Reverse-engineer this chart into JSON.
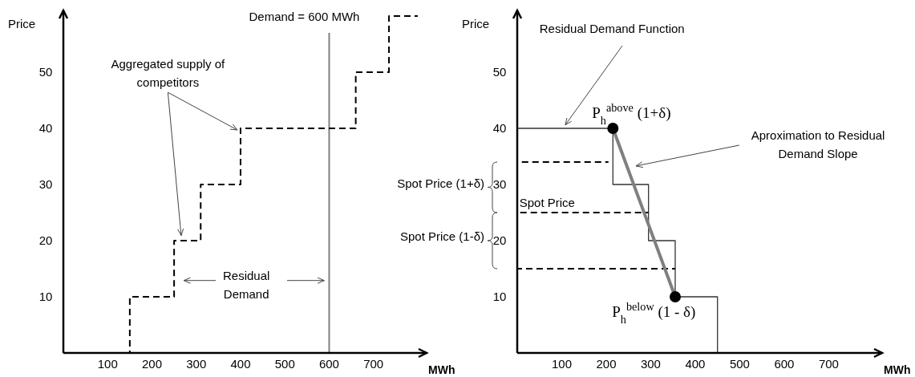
{
  "chart_data": [
    {
      "type": "line",
      "xlabel": "MWh",
      "ylabel": "Price",
      "xlim": [
        0,
        820
      ],
      "ylim": [
        0,
        61
      ],
      "xticks": [
        100,
        200,
        300,
        400,
        500,
        600,
        700
      ],
      "yticks": [
        10,
        20,
        30,
        40,
        50
      ],
      "series": [
        {
          "line_style": "dashed",
          "color": "#000000",
          "x": [
            150,
            150,
            250,
            250,
            310,
            310,
            400,
            400,
            660,
            660,
            735,
            735,
            800
          ],
          "values": [
            0,
            10,
            10,
            20,
            20,
            30,
            30,
            40,
            40,
            50,
            50,
            60,
            60
          ]
        }
      ],
      "ref_lines": [
        {
          "axis": "x",
          "value": 600,
          "label": "Demand = 600 MWh",
          "color": "#808080"
        }
      ],
      "annotations": [
        {
          "text": "Aggregated supply of competitors",
          "x": 400,
          "y": 40
        },
        "Residual Demand"
      ]
    },
    {
      "type": "line",
      "xlabel": "MWh",
      "ylabel": "Price",
      "xlim": [
        0,
        820
      ],
      "ylim": [
        0,
        61
      ],
      "xticks": [
        100,
        200,
        300,
        400,
        500,
        600,
        700
      ],
      "yticks": [
        10,
        20,
        30,
        40,
        50
      ],
      "series": [
        {
          "line_style": "solid",
          "color": "#333333",
          "x": [
            0,
            215,
            215,
            295,
            295,
            355,
            355,
            450,
            450
          ],
          "values": [
            40,
            40,
            30,
            30,
            20,
            20,
            10,
            10,
            0
          ]
        },
        {
          "line_style": "dashed",
          "color": "#000000",
          "x": [
            0,
            205
          ],
          "values": [
            34,
            34
          ]
        },
        {
          "line_style": "dashed",
          "color": "#000000",
          "x": [
            0,
            295
          ],
          "values": [
            25,
            25
          ]
        },
        {
          "line_style": "dashed",
          "color": "#000000",
          "x": [
            0,
            355
          ],
          "values": [
            15,
            15
          ]
        },
        {
          "line_style": "solid",
          "color": "#808080",
          "x": [
            215,
            355
          ],
          "values": [
            40,
            10
          ]
        },
        {
          "type": "scatter",
          "marker": "circle",
          "color": "#000000",
          "x": [
            215,
            355
          ],
          "values": [
            40,
            10
          ]
        }
      ],
      "annotations": [
        "Residual Demand Function",
        "P$_{h}$$^{above}$ (1+δ)",
        "Aproximation to Residual Demand Slope",
        "P$_{h}$$^{below}$ (1 - δ)",
        "Spot Price",
        "Spot Price (1+δ)",
        "Spot Price (1-δ)"
      ]
    }
  ]
}
